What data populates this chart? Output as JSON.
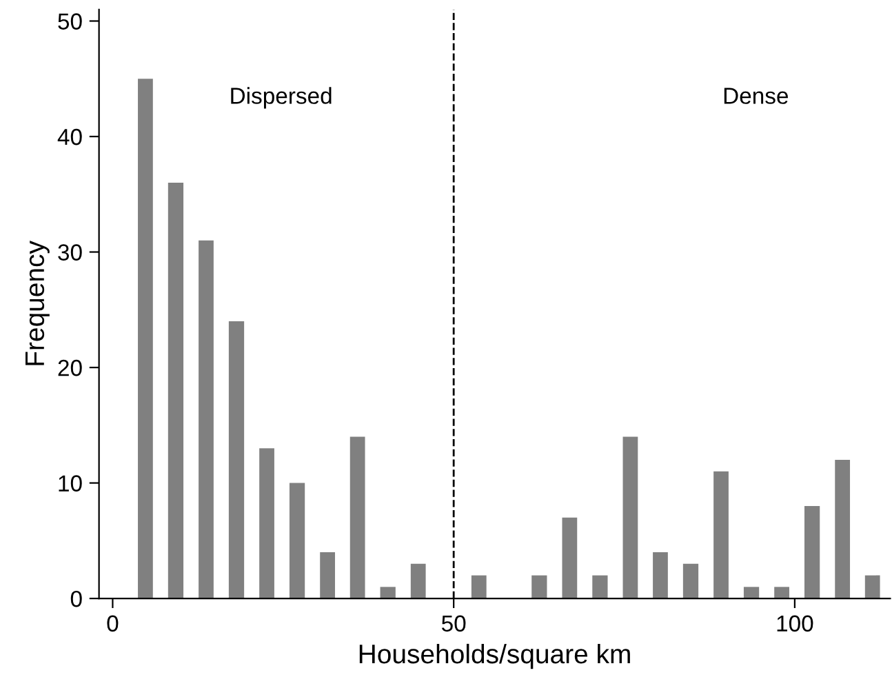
{
  "chart_data": {
    "type": "histogram",
    "bins": [
      2.6,
      7.0,
      11.5,
      15.9,
      20.4,
      24.8,
      29.3,
      33.7,
      38.1,
      42.6,
      47.0,
      51.5,
      55.9,
      60.3,
      64.8,
      69.2,
      73.7,
      78.1,
      82.5,
      87.0,
      91.4,
      95.9,
      100.3,
      104.8,
      109.2,
      113.6
    ],
    "values": [
      45,
      36,
      31,
      24,
      13,
      10,
      4,
      14,
      1,
      3,
      0,
      2,
      0,
      2,
      7,
      2,
      14,
      4,
      3,
      11,
      1,
      1,
      8,
      12,
      2
    ],
    "color": "#808080",
    "xlabel": "Households/square km",
    "ylabel": "Frequency",
    "xlim": [
      -2,
      114
    ],
    "xticks": [
      0,
      50,
      100
    ],
    "ylim": [
      0,
      51
    ],
    "yticks": [
      0,
      10,
      20,
      30,
      40,
      50
    ],
    "grid": false,
    "ref_lines": [
      {
        "axis": "x",
        "value": 50,
        "line_style": "dashed",
        "color": "#000000"
      }
    ],
    "annotations": [
      "Dispersed",
      "Dense"
    ]
  }
}
